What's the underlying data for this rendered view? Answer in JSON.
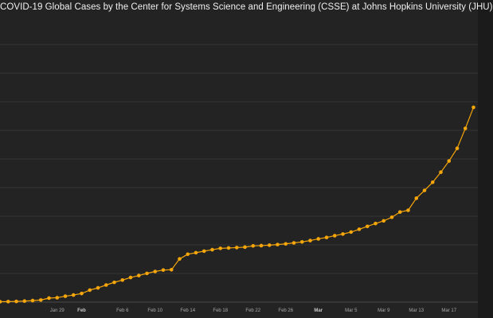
{
  "chart_data": {
    "type": "line",
    "title": "COVID-19 Global Cases by the Center for Systems Science and Engineering (CSSE) at Johns Hopkins University (JHU)",
    "xlabel": "",
    "ylabel": "",
    "x": [
      "Jan 22",
      "Jan 23",
      "Jan 24",
      "Jan 25",
      "Jan 26",
      "Jan 27",
      "Jan 28",
      "Jan 29",
      "Jan 30",
      "Jan 31",
      "Feb 1",
      "Feb 2",
      "Feb 3",
      "Feb 4",
      "Feb 5",
      "Feb 6",
      "Feb 7",
      "Feb 8",
      "Feb 9",
      "Feb 10",
      "Feb 11",
      "Feb 12",
      "Feb 13",
      "Feb 14",
      "Feb 15",
      "Feb 16",
      "Feb 17",
      "Feb 18",
      "Feb 19",
      "Feb 20",
      "Feb 21",
      "Feb 22",
      "Feb 23",
      "Feb 24",
      "Feb 25",
      "Feb 26",
      "Feb 27",
      "Feb 28",
      "Feb 29",
      "Mar 1",
      "Mar 2",
      "Mar 3",
      "Mar 4",
      "Mar 5",
      "Mar 6",
      "Mar 7",
      "Mar 8",
      "Mar 9",
      "Mar 10",
      "Mar 11",
      "Mar 12",
      "Mar 13",
      "Mar 14",
      "Mar 15",
      "Mar 16",
      "Mar 17",
      "Mar 18",
      "Mar 19",
      "Mar 20"
    ],
    "series": [
      {
        "values": [
          555,
          654,
          941,
          1434,
          2118,
          2927,
          5578,
          6166,
          8234,
          9927,
          12038,
          16787,
          19881,
          23892,
          27635,
          30794,
          34391,
          37120,
          40150,
          42762,
          44802,
          45221,
          60368,
          66885,
          69030,
          71224,
          73258,
          75136,
          75639,
          76197,
          76819,
          78572,
          78958,
          79561,
          80406,
          81388,
          82746,
          84112,
          86011,
          88369,
          90306,
          92840,
          95120,
          97886,
          101801,
          105847,
          109821,
          113590,
          118620,
          125875,
          128343,
          145193,
          156097,
          167449,
          181546,
          197168,
          214915,
          242713,
          272167
        ]
      }
    ],
    "ylim": [
      0,
      400000
    ],
    "x_ticks": [
      {
        "label": "Jan 29",
        "bold": false
      },
      {
        "label": "Feb",
        "bold": true
      },
      {
        "label": "Feb 6",
        "bold": false
      },
      {
        "label": "Feb 10",
        "bold": false
      },
      {
        "label": "Feb 14",
        "bold": false
      },
      {
        "label": "Feb 18",
        "bold": false
      },
      {
        "label": "Feb 22",
        "bold": false
      },
      {
        "label": "Feb 26",
        "bold": false
      },
      {
        "label": "Mar",
        "bold": true
      },
      {
        "label": "Mar 5",
        "bold": false
      },
      {
        "label": "Mar 9",
        "bold": false
      },
      {
        "label": "Mar 13",
        "bold": false
      },
      {
        "label": "Mar 17",
        "bold": false
      }
    ],
    "grid": true,
    "colors": {
      "line": "#f5a60a",
      "background": "#232323",
      "grid": "#3b3b3b",
      "title": "#f0f0f0"
    }
  }
}
